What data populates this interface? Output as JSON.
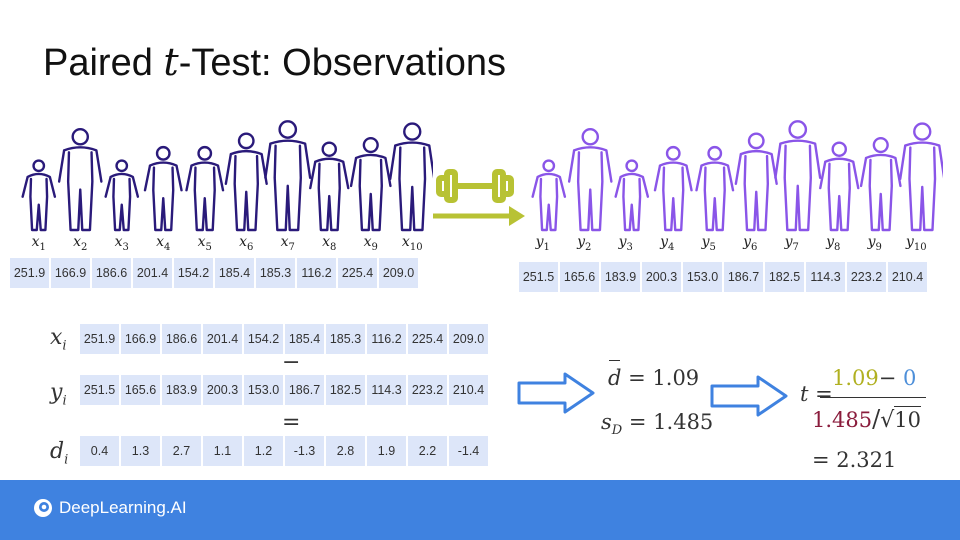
{
  "title": {
    "prefix": "Paired ",
    "t": "t",
    "suffix": "-Test: Observations"
  },
  "x_labels": [
    "x1",
    "x2",
    "x3",
    "x4",
    "x5",
    "x6",
    "x7",
    "x8",
    "x9",
    "x10"
  ],
  "y_labels": [
    "y1",
    "y2",
    "y3",
    "y4",
    "y5",
    "y6",
    "y7",
    "y8",
    "y9",
    "y10"
  ],
  "x_values": [
    "251.9",
    "166.9",
    "186.6",
    "201.4",
    "154.2",
    "185.4",
    "185.3",
    "116.2",
    "225.4",
    "209.0"
  ],
  "y_values": [
    "251.5",
    "165.6",
    "183.9",
    "200.3",
    "153.0",
    "186.7",
    "182.5",
    "114.3",
    "223.2",
    "210.4"
  ],
  "d_values": [
    "0.4",
    "1.3",
    "2.7",
    "1.1",
    "1.2",
    "-1.3",
    "2.8",
    "1.9",
    "2.2",
    "-1.4"
  ],
  "row_labels": {
    "x": "x",
    "y": "y",
    "d": "d",
    "sub": "i"
  },
  "operators": {
    "minus": "−",
    "equals": "="
  },
  "stats": {
    "dbar_label": "d",
    "dbar_eq": "= 1.09",
    "sd_label": "s",
    "sd_sub": "D",
    "sd_eq": "= 1.485"
  },
  "tstat": {
    "t_label": "t",
    "eq": "=",
    "num_mean": "1.09",
    "num_minus": "− ",
    "num_mu": "0",
    "den_sd": "1.485",
    "den_n": "10",
    "result": "= 2.321"
  },
  "colors": {
    "before_people": "#2a1a7a",
    "after_people": "#8a55e8",
    "arrow_green": "#b8c234",
    "arrow_blue": "#3f82e0",
    "num_mean": "#b0b020",
    "num_mu": "#4d8fd9",
    "den_sd": "#8a1c3c",
    "cell_bg": "#dde6f9",
    "footer": "#3f82e0"
  },
  "footer": {
    "logo": "DeepLearning.AI"
  }
}
